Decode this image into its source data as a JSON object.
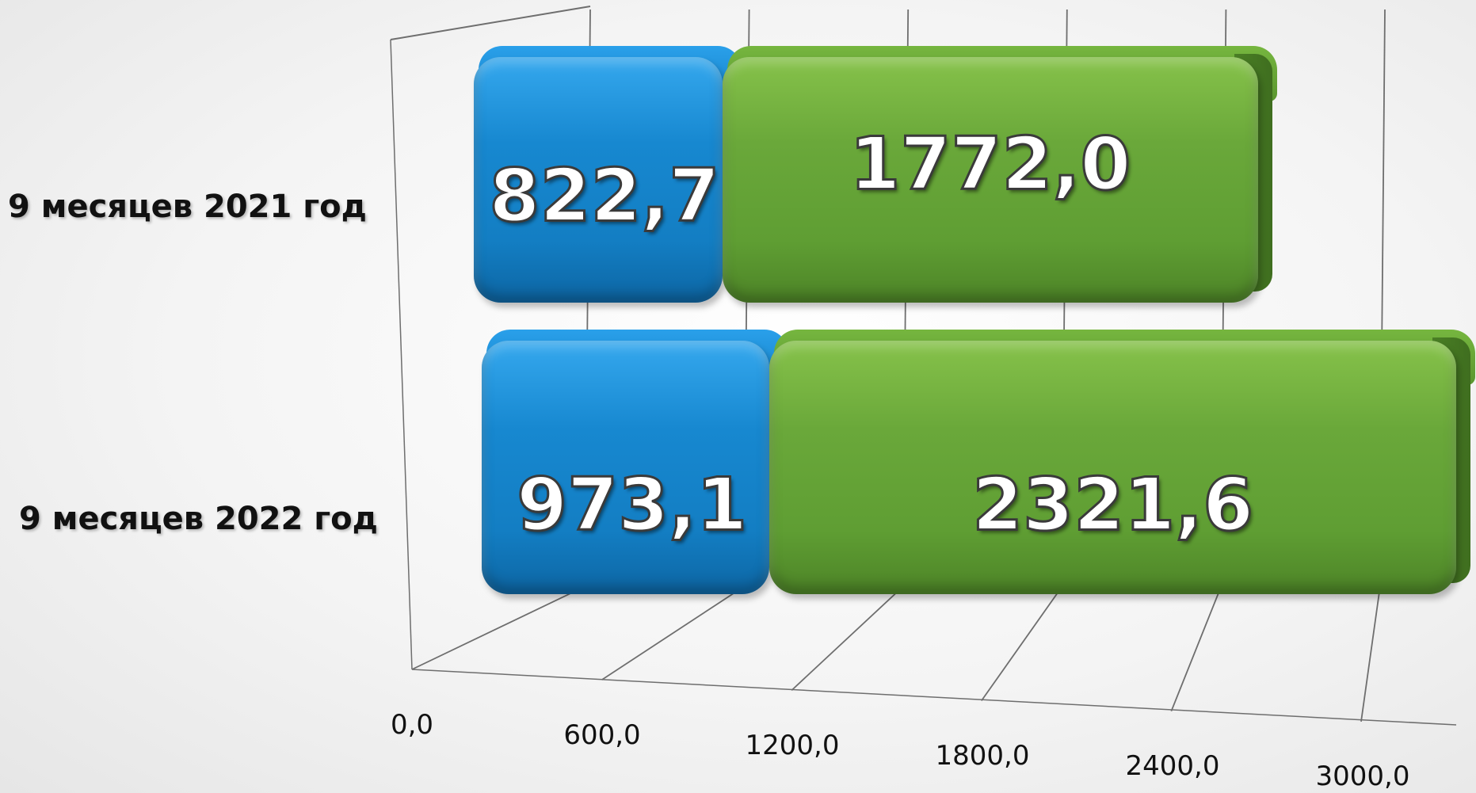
{
  "chart_data": {
    "type": "bar",
    "orientation": "horizontal",
    "stacked": true,
    "categories": [
      "9 месяцев 2021 год",
      "9 месяцев 2022 год"
    ],
    "series": [
      {
        "values": [
          822.7,
          973.1
        ],
        "value_labels": [
          "822,7",
          "973,1"
        ],
        "color": "#1788d0"
      },
      {
        "values": [
          1772.0,
          2321.6
        ],
        "value_labels": [
          "1772,0",
          "2321,6"
        ],
        "color": "#6aa83a"
      }
    ],
    "xlim": [
      0,
      3000
    ],
    "x_ticks": [
      0,
      600,
      1200,
      1800,
      2400,
      3000
    ],
    "x_tick_labels": [
      "0,0",
      "600,0",
      "1200,0",
      "1800,0",
      "2400,0",
      "3000,0"
    ],
    "grid": true,
    "legend": "none",
    "title": "",
    "xlabel": "",
    "ylabel": ""
  }
}
